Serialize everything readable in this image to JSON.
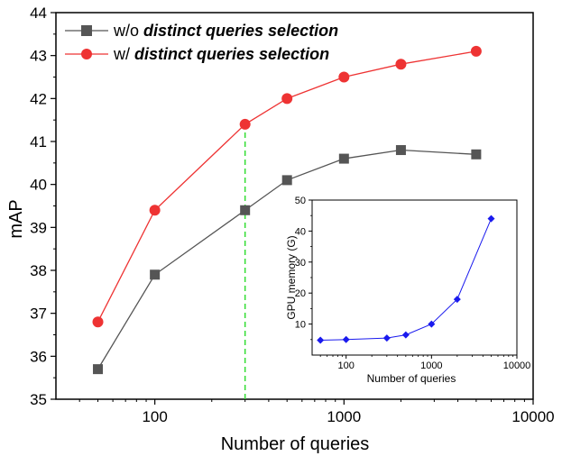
{
  "chart_data": [
    {
      "type": "line",
      "xscale": "log",
      "xlabel": "Number of queries",
      "ylabel": "mAP",
      "xlim": [
        30,
        10000
      ],
      "ylim": [
        35,
        44
      ],
      "xticks": [
        100,
        1000,
        10000
      ],
      "xtick_labels": [
        "100",
        "1000",
        "10000"
      ],
      "yticks": [
        35,
        36,
        37,
        38,
        39,
        40,
        41,
        42,
        43,
        44
      ],
      "ytick_labels": [
        "35",
        "36",
        "37",
        "38",
        "39",
        "40",
        "41",
        "42",
        "43",
        "44"
      ],
      "legend": {
        "position": "top-left",
        "items": [
          {
            "prefix": "w/o ",
            "emph": "distinct queries selection"
          },
          {
            "prefix": "w/ ",
            "emph": "distinct queries selection"
          }
        ]
      },
      "reference_line": {
        "x": 300,
        "from_y": 35,
        "to_y": 41.4,
        "color": "#33dd33",
        "style": "dashed"
      },
      "x": [
        50,
        100,
        300,
        500,
        1000,
        2000,
        5000
      ],
      "series": [
        {
          "name": "w/o distinct queries selection",
          "color": "#555555",
          "marker": "square",
          "values": [
            35.7,
            37.9,
            39.4,
            40.1,
            40.6,
            40.8,
            40.7
          ]
        },
        {
          "name": "w/ distinct queries selection",
          "color": "#ee3333",
          "marker": "circle",
          "values": [
            36.8,
            39.4,
            41.4,
            42.0,
            42.5,
            42.8,
            43.1
          ]
        }
      ]
    },
    {
      "type": "line",
      "xscale": "log",
      "xlabel": "Number of queries",
      "ylabel": "GPU memory (G)",
      "xlim": [
        40,
        10000
      ],
      "ylim": [
        0,
        50
      ],
      "xticks": [
        100,
        1000,
        10000
      ],
      "xtick_labels": [
        "100",
        "1000",
        "10000"
      ],
      "yticks": [
        10,
        20,
        30,
        40,
        50
      ],
      "ytick_labels": [
        "10",
        "20",
        "30",
        "40",
        "50"
      ],
      "x": [
        50,
        100,
        300,
        500,
        1000,
        2000,
        5000
      ],
      "series": [
        {
          "name": "GPU memory",
          "color": "#1a1aee",
          "marker": "diamond",
          "values": [
            4.8,
            5.0,
            5.5,
            6.5,
            10.0,
            18.0,
            44.0
          ]
        }
      ]
    }
  ]
}
